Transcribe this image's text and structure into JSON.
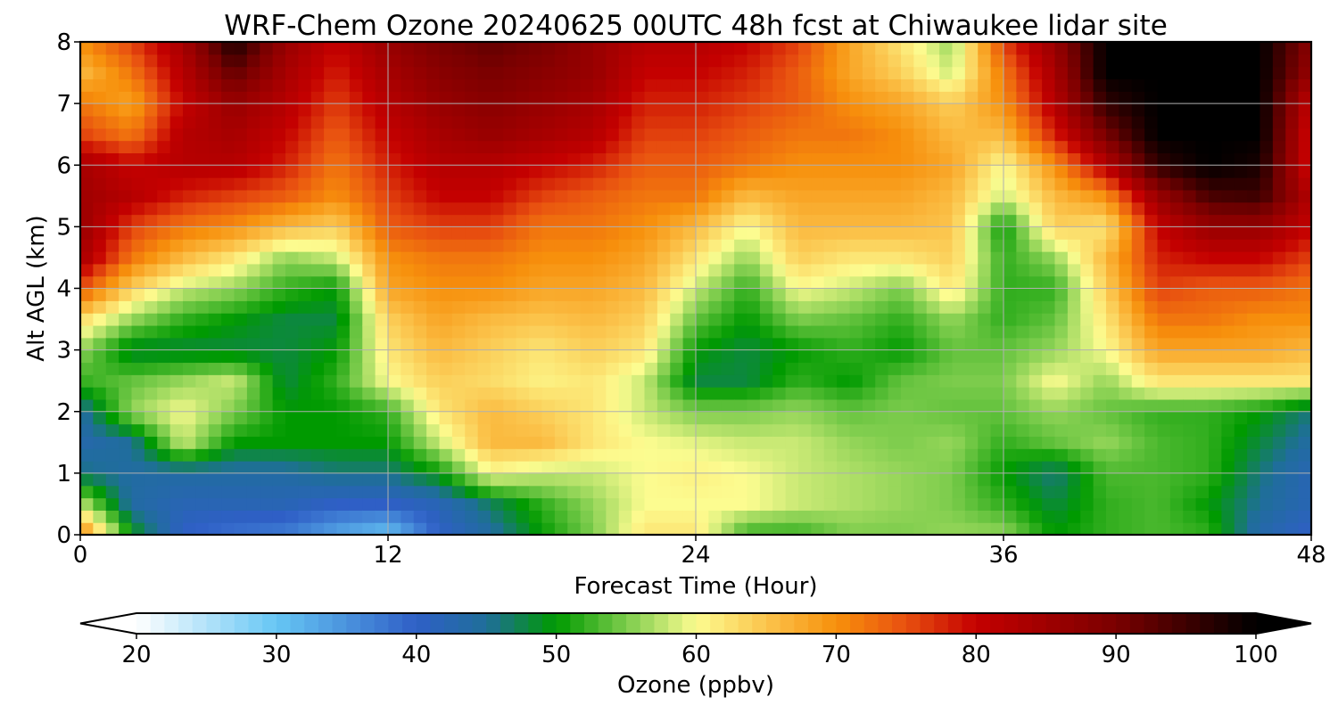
{
  "chart_data": {
    "type": "heatmap",
    "title": "WRF-Chem Ozone  20240625 00UTC 48h fcst at Chiwaukee lidar site",
    "xlabel": "Forecast Time (Hour)",
    "ylabel": "Alt AGL (km)",
    "xlim": [
      0,
      48
    ],
    "ylim": [
      0,
      8
    ],
    "x_ticks": [
      0,
      12,
      24,
      36,
      48
    ],
    "y_ticks": [
      0,
      1,
      2,
      3,
      4,
      5,
      6,
      7,
      8
    ],
    "grid": true,
    "x_hours": [
      0,
      2,
      4,
      6,
      8,
      10,
      12,
      14,
      16,
      18,
      20,
      22,
      24,
      26,
      28,
      30,
      32,
      34,
      36,
      38,
      40,
      42,
      44,
      46,
      48
    ],
    "y_km": [
      0,
      0.5,
      1,
      1.5,
      2,
      2.5,
      3,
      3.5,
      4,
      4.5,
      5,
      5.5,
      6,
      6.5,
      7,
      7.5,
      8
    ],
    "ozone_ppbv": [
      [
        72,
        50,
        40,
        38,
        37,
        33,
        30,
        40,
        44,
        50,
        55,
        62,
        62,
        52,
        52,
        55,
        55,
        56,
        56,
        50,
        52,
        53,
        52,
        43,
        40
      ],
      [
        58,
        44,
        42,
        42,
        42,
        40,
        40,
        42,
        47,
        52,
        56,
        60,
        60,
        60,
        58,
        57,
        56,
        55,
        52,
        48,
        52,
        53,
        50,
        45,
        42
      ],
      [
        46,
        44,
        44,
        44,
        44,
        46,
        46,
        50,
        60,
        58,
        58,
        60,
        61,
        60,
        58,
        57,
        56,
        55,
        50,
        46,
        53,
        53,
        52,
        46,
        42
      ],
      [
        43,
        45,
        58,
        50,
        50,
        50,
        50,
        58,
        66,
        66,
        62,
        60,
        59,
        58,
        58,
        56,
        55,
        56,
        52,
        54,
        56,
        53,
        52,
        48,
        44
      ],
      [
        44,
        56,
        60,
        55,
        50,
        50,
        52,
        62,
        66,
        64,
        62,
        58,
        55,
        55,
        56,
        54,
        55,
        54,
        54,
        56,
        54,
        52,
        52,
        50,
        46
      ],
      [
        52,
        54,
        56,
        58,
        48,
        52,
        60,
        64,
        63,
        61,
        62,
        58,
        48,
        48,
        52,
        50,
        54,
        55,
        55,
        60,
        56,
        62,
        62,
        62,
        62
      ],
      [
        56,
        48,
        48,
        48,
        48,
        50,
        62,
        66,
        64,
        62,
        64,
        62,
        50,
        48,
        50,
        52,
        50,
        54,
        54,
        56,
        60,
        68,
        68,
        68,
        66
      ],
      [
        63,
        56,
        52,
        50,
        48,
        48,
        64,
        68,
        66,
        65,
        66,
        64,
        54,
        50,
        55,
        54,
        52,
        56,
        52,
        54,
        62,
        72,
        72,
        70,
        70
      ],
      [
        75,
        64,
        58,
        56,
        52,
        50,
        68,
        70,
        70,
        68,
        68,
        66,
        58,
        52,
        60,
        58,
        55,
        62,
        52,
        52,
        64,
        76,
        74,
        74,
        72
      ],
      [
        84,
        72,
        66,
        62,
        56,
        58,
        70,
        72,
        72,
        70,
        70,
        68,
        62,
        56,
        64,
        62,
        62,
        64,
        52,
        56,
        66,
        78,
        80,
        80,
        76
      ],
      [
        86,
        76,
        72,
        70,
        66,
        64,
        74,
        76,
        76,
        72,
        72,
        70,
        66,
        60,
        66,
        66,
        66,
        65,
        50,
        64,
        62,
        80,
        86,
        86,
        80
      ],
      [
        85,
        82,
        78,
        76,
        74,
        70,
        76,
        80,
        80,
        76,
        74,
        72,
        72,
        66,
        68,
        68,
        68,
        66,
        58,
        66,
        70,
        86,
        94,
        95,
        82
      ],
      [
        84,
        80,
        82,
        82,
        78,
        72,
        78,
        82,
        82,
        80,
        78,
        74,
        74,
        72,
        70,
        70,
        70,
        68,
        60,
        70,
        82,
        96,
        100,
        98,
        78
      ],
      [
        76,
        72,
        82,
        84,
        80,
        74,
        80,
        84,
        86,
        84,
        82,
        76,
        76,
        74,
        72,
        72,
        70,
        66,
        66,
        78,
        90,
        100,
        100,
        100,
        78
      ],
      [
        72,
        68,
        80,
        86,
        82,
        76,
        82,
        86,
        88,
        86,
        84,
        78,
        78,
        76,
        74,
        70,
        68,
        64,
        70,
        82,
        96,
        100,
        100,
        100,
        80
      ],
      [
        66,
        72,
        82,
        92,
        84,
        78,
        84,
        88,
        90,
        88,
        86,
        80,
        80,
        78,
        74,
        68,
        64,
        58,
        72,
        84,
        100,
        100,
        100,
        100,
        86
      ],
      [
        70,
        76,
        84,
        98,
        86,
        80,
        86,
        90,
        92,
        90,
        86,
        82,
        82,
        80,
        76,
        68,
        62,
        56,
        76,
        86,
        100,
        100,
        100,
        100,
        88
      ]
    ],
    "colorbar": {
      "label": "Ozone  (ppbv)",
      "ticks": [
        20,
        30,
        40,
        50,
        60,
        70,
        80,
        90,
        100
      ],
      "range": [
        20,
        100
      ],
      "extend": "both",
      "colormap": [
        [
          20,
          "#ffffff"
        ],
        [
          30,
          "#66c6f4"
        ],
        [
          40,
          "#2f5fc6"
        ],
        [
          45,
          "#1f6e9a"
        ],
        [
          50,
          "#009a00"
        ],
        [
          55,
          "#7ccc4c"
        ],
        [
          60,
          "#fcfc90"
        ],
        [
          65,
          "#fbc44c"
        ],
        [
          70,
          "#f7900c"
        ],
        [
          75,
          "#e85010"
        ],
        [
          80,
          "#c40000"
        ],
        [
          90,
          "#7a0000"
        ],
        [
          100,
          "#000000"
        ]
      ]
    }
  }
}
